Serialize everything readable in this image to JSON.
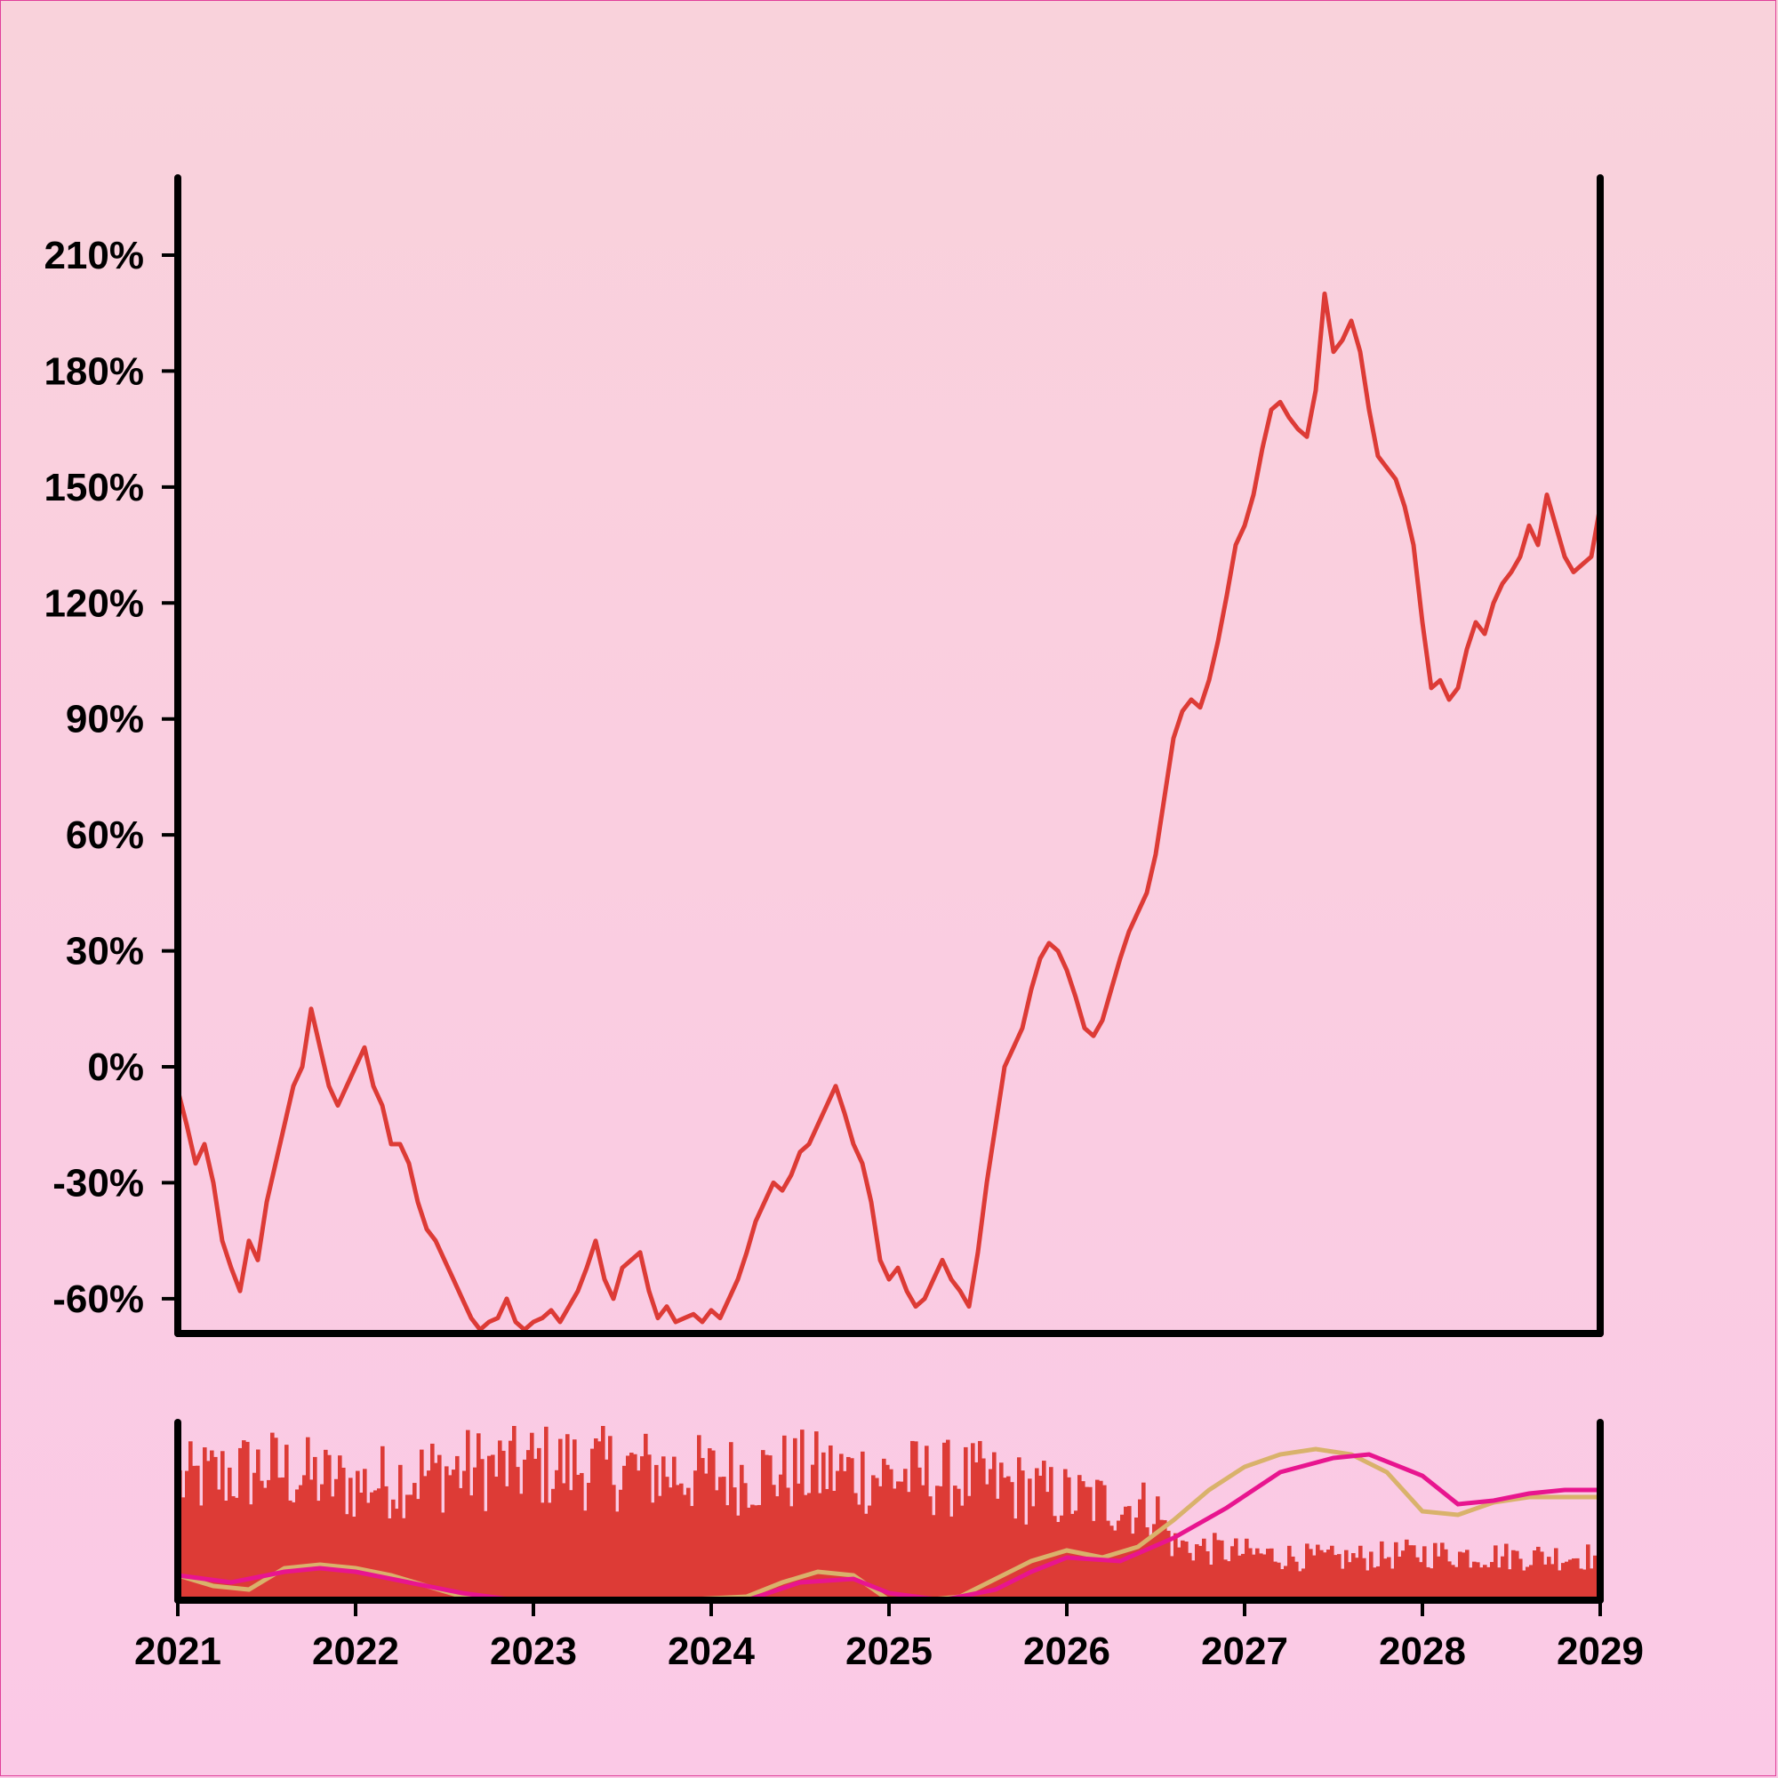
{
  "chart_data": {
    "type": "line",
    "title": "",
    "xlabel": "",
    "ylabel": "",
    "colors": {
      "price_line": "#dd3b36",
      "volume_bars": "#dd3b36",
      "ma_short": "#d9b26b",
      "ma_long": "#e8158f",
      "axis": "#000000"
    },
    "main_panel": {
      "ylim": [
        -69,
        230
      ],
      "y_ticks": [
        -60,
        -30,
        0,
        30,
        60,
        90,
        120,
        150,
        180,
        210
      ],
      "y_tick_labels": [
        "-60%",
        "-30%",
        "0%",
        "30%",
        "60%",
        "90%",
        "120%",
        "150%",
        "180%",
        "210%"
      ],
      "series": [
        {
          "values_xy": [
            [
              2021.0,
              -6
            ],
            [
              2021.05,
              -15
            ],
            [
              2021.1,
              -25
            ],
            [
              2021.15,
              -20
            ],
            [
              2021.2,
              -30
            ],
            [
              2021.25,
              -45
            ],
            [
              2021.3,
              -52
            ],
            [
              2021.35,
              -58
            ],
            [
              2021.4,
              -45
            ],
            [
              2021.45,
              -50
            ],
            [
              2021.5,
              -35
            ],
            [
              2021.55,
              -25
            ],
            [
              2021.6,
              -15
            ],
            [
              2021.65,
              -5
            ],
            [
              2021.7,
              0
            ],
            [
              2021.75,
              15
            ],
            [
              2021.8,
              5
            ],
            [
              2021.85,
              -5
            ],
            [
              2021.9,
              -10
            ],
            [
              2021.95,
              -5
            ],
            [
              2022.0,
              0
            ],
            [
              2022.05,
              5
            ],
            [
              2022.1,
              -5
            ],
            [
              2022.15,
              -10
            ],
            [
              2022.2,
              -20
            ],
            [
              2022.25,
              -20
            ],
            [
              2022.3,
              -25
            ],
            [
              2022.35,
              -35
            ],
            [
              2022.4,
              -42
            ],
            [
              2022.45,
              -45
            ],
            [
              2022.5,
              -50
            ],
            [
              2022.55,
              -55
            ],
            [
              2022.6,
              -60
            ],
            [
              2022.65,
              -65
            ],
            [
              2022.7,
              -68
            ],
            [
              2022.75,
              -66
            ],
            [
              2022.8,
              -65
            ],
            [
              2022.85,
              -60
            ],
            [
              2022.9,
              -66
            ],
            [
              2022.95,
              -68
            ],
            [
              2023.0,
              -66
            ],
            [
              2023.05,
              -65
            ],
            [
              2023.1,
              -63
            ],
            [
              2023.15,
              -66
            ],
            [
              2023.2,
              -62
            ],
            [
              2023.25,
              -58
            ],
            [
              2023.3,
              -52
            ],
            [
              2023.35,
              -45
            ],
            [
              2023.4,
              -55
            ],
            [
              2023.45,
              -60
            ],
            [
              2023.5,
              -52
            ],
            [
              2023.55,
              -50
            ],
            [
              2023.6,
              -48
            ],
            [
              2023.65,
              -58
            ],
            [
              2023.7,
              -65
            ],
            [
              2023.75,
              -62
            ],
            [
              2023.8,
              -66
            ],
            [
              2023.85,
              -65
            ],
            [
              2023.9,
              -64
            ],
            [
              2023.95,
              -66
            ],
            [
              2024.0,
              -63
            ],
            [
              2024.05,
              -65
            ],
            [
              2024.1,
              -60
            ],
            [
              2024.15,
              -55
            ],
            [
              2024.2,
              -48
            ],
            [
              2024.25,
              -40
            ],
            [
              2024.3,
              -35
            ],
            [
              2024.35,
              -30
            ],
            [
              2024.4,
              -32
            ],
            [
              2024.45,
              -28
            ],
            [
              2024.5,
              -22
            ],
            [
              2024.55,
              -20
            ],
            [
              2024.6,
              -15
            ],
            [
              2024.65,
              -10
            ],
            [
              2024.7,
              -5
            ],
            [
              2024.75,
              -12
            ],
            [
              2024.8,
              -20
            ],
            [
              2024.85,
              -25
            ],
            [
              2024.9,
              -35
            ],
            [
              2024.95,
              -50
            ],
            [
              2025.0,
              -55
            ],
            [
              2025.05,
              -52
            ],
            [
              2025.1,
              -58
            ],
            [
              2025.15,
              -62
            ],
            [
              2025.2,
              -60
            ],
            [
              2025.25,
              -55
            ],
            [
              2025.3,
              -50
            ],
            [
              2025.35,
              -55
            ],
            [
              2025.4,
              -58
            ],
            [
              2025.45,
              -62
            ],
            [
              2025.5,
              -48
            ],
            [
              2025.55,
              -30
            ],
            [
              2025.6,
              -15
            ],
            [
              2025.65,
              0
            ],
            [
              2025.7,
              5
            ],
            [
              2025.75,
              10
            ],
            [
              2025.8,
              20
            ],
            [
              2025.85,
              28
            ],
            [
              2025.9,
              32
            ],
            [
              2025.95,
              30
            ],
            [
              2026.0,
              25
            ],
            [
              2026.05,
              18
            ],
            [
              2026.1,
              10
            ],
            [
              2026.15,
              8
            ],
            [
              2026.2,
              12
            ],
            [
              2026.25,
              20
            ],
            [
              2026.3,
              28
            ],
            [
              2026.35,
              35
            ],
            [
              2026.4,
              40
            ],
            [
              2026.45,
              45
            ],
            [
              2026.5,
              55
            ],
            [
              2026.55,
              70
            ],
            [
              2026.6,
              85
            ],
            [
              2026.65,
              92
            ],
            [
              2026.7,
              95
            ],
            [
              2026.75,
              93
            ],
            [
              2026.8,
              100
            ],
            [
              2026.85,
              110
            ],
            [
              2026.9,
              122
            ],
            [
              2026.95,
              135
            ],
            [
              2027.0,
              140
            ],
            [
              2027.05,
              148
            ],
            [
              2027.1,
              160
            ],
            [
              2027.15,
              170
            ],
            [
              2027.2,
              172
            ],
            [
              2027.25,
              168
            ],
            [
              2027.3,
              165
            ],
            [
              2027.35,
              163
            ],
            [
              2027.4,
              175
            ],
            [
              2027.45,
              200
            ],
            [
              2027.5,
              185
            ],
            [
              2027.55,
              188
            ],
            [
              2027.6,
              193
            ],
            [
              2027.65,
              185
            ],
            [
              2027.7,
              170
            ],
            [
              2027.75,
              158
            ],
            [
              2027.8,
              155
            ],
            [
              2027.85,
              152
            ],
            [
              2027.9,
              145
            ],
            [
              2027.95,
              135
            ],
            [
              2028.0,
              115
            ],
            [
              2028.05,
              98
            ],
            [
              2028.1,
              100
            ],
            [
              2028.15,
              95
            ],
            [
              2028.2,
              98
            ],
            [
              2028.25,
              108
            ],
            [
              2028.3,
              115
            ],
            [
              2028.35,
              112
            ],
            [
              2028.4,
              120
            ],
            [
              2028.45,
              125
            ],
            [
              2028.5,
              128
            ],
            [
              2028.55,
              132
            ],
            [
              2028.6,
              140
            ],
            [
              2028.65,
              135
            ],
            [
              2028.7,
              148
            ],
            [
              2028.75,
              140
            ],
            [
              2028.8,
              132
            ],
            [
              2028.85,
              128
            ],
            [
              2028.9,
              130
            ],
            [
              2028.95,
              132
            ],
            [
              2029.0,
              145
            ]
          ]
        }
      ]
    },
    "volume_panel": {
      "bars_x_range": [
        2021.0,
        2029.0
      ],
      "volume_base": 60,
      "volume_samples": [
        [
          2021.0,
          80
        ],
        [
          2021.5,
          90
        ],
        [
          2022.0,
          78
        ],
        [
          2022.5,
          88
        ],
        [
          2023.0,
          92
        ],
        [
          2023.5,
          90
        ],
        [
          2024.0,
          85
        ],
        [
          2024.5,
          88
        ],
        [
          2025.0,
          85
        ],
        [
          2025.5,
          82
        ],
        [
          2026.0,
          70
        ],
        [
          2026.5,
          62
        ],
        [
          2026.6,
          38
        ],
        [
          2027.0,
          32
        ],
        [
          2027.5,
          28
        ],
        [
          2028.0,
          32
        ],
        [
          2028.5,
          30
        ],
        [
          2029.0,
          30
        ]
      ],
      "moving_averages": [
        {
          "values_xy": [
            [
              2021.0,
              14
            ],
            [
              2021.2,
              8
            ],
            [
              2021.4,
              6
            ],
            [
              2021.6,
              18
            ],
            [
              2021.8,
              20
            ],
            [
              2022.0,
              18
            ],
            [
              2022.2,
              14
            ],
            [
              2022.4,
              8
            ],
            [
              2022.6,
              2
            ],
            [
              2022.8,
              0
            ],
            [
              2023.0,
              0
            ],
            [
              2023.4,
              0
            ],
            [
              2023.8,
              0
            ],
            [
              2024.2,
              2
            ],
            [
              2024.4,
              10
            ],
            [
              2024.6,
              16
            ],
            [
              2024.8,
              14
            ],
            [
              2025.0,
              0
            ],
            [
              2025.2,
              0
            ],
            [
              2025.4,
              2
            ],
            [
              2025.6,
              12
            ],
            [
              2025.8,
              22
            ],
            [
              2026.0,
              28
            ],
            [
              2026.2,
              24
            ],
            [
              2026.4,
              30
            ],
            [
              2026.6,
              45
            ],
            [
              2026.8,
              62
            ],
            [
              2027.0,
              75
            ],
            [
              2027.2,
              82
            ],
            [
              2027.4,
              85
            ],
            [
              2027.6,
              82
            ],
            [
              2027.8,
              72
            ],
            [
              2028.0,
              50
            ],
            [
              2028.2,
              48
            ],
            [
              2028.4,
              55
            ],
            [
              2028.6,
              58
            ],
            [
              2028.8,
              58
            ],
            [
              2029.0,
              58
            ]
          ]
        },
        {
          "values_xy": [
            [
              2021.0,
              14
            ],
            [
              2021.3,
              10
            ],
            [
              2021.6,
              16
            ],
            [
              2021.8,
              18
            ],
            [
              2022.0,
              16
            ],
            [
              2022.3,
              10
            ],
            [
              2022.6,
              4
            ],
            [
              2022.9,
              0
            ],
            [
              2023.3,
              0
            ],
            [
              2023.7,
              0
            ],
            [
              2024.2,
              0
            ],
            [
              2024.5,
              10
            ],
            [
              2024.8,
              12
            ],
            [
              2025.0,
              4
            ],
            [
              2025.3,
              0
            ],
            [
              2025.6,
              6
            ],
            [
              2025.8,
              16
            ],
            [
              2026.0,
              24
            ],
            [
              2026.3,
              22
            ],
            [
              2026.6,
              35
            ],
            [
              2026.9,
              52
            ],
            [
              2027.2,
              72
            ],
            [
              2027.5,
              80
            ],
            [
              2027.7,
              82
            ],
            [
              2028.0,
              70
            ],
            [
              2028.2,
              54
            ],
            [
              2028.4,
              56
            ],
            [
              2028.6,
              60
            ],
            [
              2028.8,
              62
            ],
            [
              2029.0,
              62
            ]
          ]
        }
      ],
      "vlim": [
        0,
        100
      ]
    },
    "xlim": [
      2021,
      2029
    ],
    "x_ticks": [
      2021,
      2022,
      2023,
      2024,
      2025,
      2026,
      2027,
      2028,
      2029
    ],
    "x_tick_labels": [
      "2021",
      "2022",
      "2023",
      "2024",
      "2025",
      "2026",
      "2027",
      "2028",
      "2029"
    ],
    "grid": false,
    "legend": "none"
  }
}
